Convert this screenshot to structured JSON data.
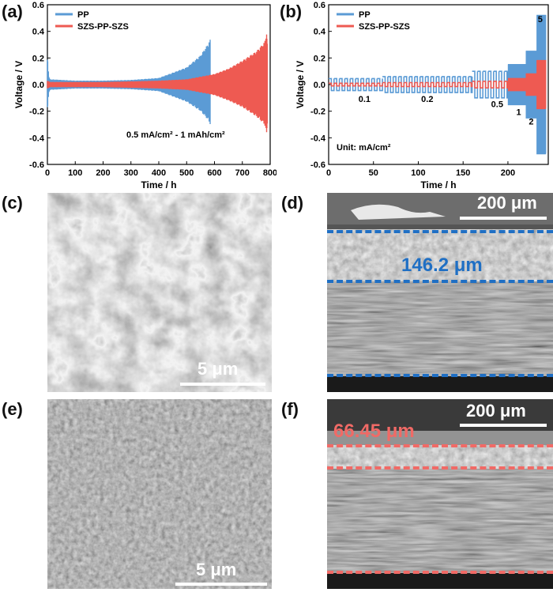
{
  "panels": {
    "a": "(a)",
    "b": "(b)",
    "c": "(c)",
    "d": "(d)",
    "e": "(e)",
    "f": "(f)"
  },
  "colors": {
    "pp": "#5b9bd5",
    "szs": "#ee5a52",
    "measure_d": "#1f6fc4",
    "measure_f": "#f06a66"
  },
  "chart_data": [
    {
      "type": "line",
      "panel": "a",
      "xlabel": "Time / h",
      "ylabel": "Voltage / V",
      "xlim": [
        0,
        800
      ],
      "ylim": [
        -0.6,
        0.6
      ],
      "xticks": [
        0,
        100,
        200,
        300,
        400,
        500,
        600,
        700,
        800
      ],
      "yticks": [
        -0.6,
        -0.4,
        -0.2,
        0.0,
        0.2,
        0.4,
        0.6
      ],
      "legend": [
        "PP",
        "SZS-PP-SZS"
      ],
      "legend_position": "top-left",
      "annotation": "0.5 mA/cm² - 1 mAh/cm²",
      "series": [
        {
          "name": "PP",
          "envelope": {
            "t": [
              0,
              5,
              10,
              100,
              200,
              300,
              400,
              450,
              500,
              550,
              575,
              585,
              590
            ],
            "upper": [
              0.22,
              0.06,
              0.04,
              0.03,
              0.03,
              0.035,
              0.05,
              0.09,
              0.13,
              0.22,
              0.3,
              0.34,
              0.0
            ],
            "lower": [
              -0.2,
              -0.06,
              -0.04,
              -0.03,
              -0.03,
              -0.035,
              -0.05,
              -0.09,
              -0.13,
              -0.2,
              -0.26,
              -0.3,
              0.0
            ]
          }
        },
        {
          "name": "SZS-PP-SZS",
          "envelope": {
            "t": [
              0,
              10,
              100,
              200,
              300,
              400,
              500,
              600,
              650,
              700,
              750,
              780,
              790,
              792
            ],
            "upper": [
              0.03,
              0.02,
              0.02,
              0.02,
              0.025,
              0.03,
              0.04,
              0.08,
              0.12,
              0.18,
              0.25,
              0.32,
              0.42,
              0.0
            ],
            "lower": [
              -0.03,
              -0.02,
              -0.02,
              -0.02,
              -0.025,
              -0.03,
              -0.04,
              -0.08,
              -0.12,
              -0.17,
              -0.24,
              -0.3,
              -0.4,
              0.0
            ]
          }
        }
      ]
    },
    {
      "type": "line",
      "panel": "b",
      "xlabel": "Time / h",
      "ylabel": "Voltage / V",
      "xlim": [
        0,
        245
      ],
      "ylim": [
        -0.6,
        0.6
      ],
      "xticks": [
        0,
        50,
        100,
        150,
        200
      ],
      "yticks": [
        -0.6,
        -0.4,
        -0.2,
        0.0,
        0.2,
        0.4,
        0.6
      ],
      "legend": [
        "PP",
        "SZS-PP-SZS"
      ],
      "legend_position": "top-left",
      "annotation": "Unit: mA/cm²",
      "rate_labels": [
        {
          "text": "0.1",
          "t": 40,
          "v": -0.13
        },
        {
          "text": "0.2",
          "t": 110,
          "v": -0.13
        },
        {
          "text": "0.5",
          "t": 188,
          "v": -0.17
        },
        {
          "text": "1",
          "t": 212,
          "v": -0.23
        },
        {
          "text": "2",
          "t": 226,
          "v": -0.3
        },
        {
          "text": "5",
          "t": 236,
          "v": 0.47
        }
      ],
      "series": [
        {
          "name": "PP",
          "segments": [
            {
              "t0": 0,
              "t1": 60,
              "amp": 0.045
            },
            {
              "t0": 60,
              "t1": 160,
              "amp": 0.06
            },
            {
              "t0": 160,
              "t1": 200,
              "amp": 0.1
            },
            {
              "t0": 200,
              "t1": 220,
              "amp": 0.15
            },
            {
              "t0": 220,
              "t1": 232,
              "amp": 0.25
            },
            {
              "t0": 232,
              "t1": 242,
              "amp": 0.52
            }
          ]
        },
        {
          "name": "SZS-PP-SZS",
          "segments": [
            {
              "t0": 0,
              "t1": 60,
              "amp": 0.01
            },
            {
              "t0": 60,
              "t1": 160,
              "amp": 0.015
            },
            {
              "t0": 160,
              "t1": 200,
              "amp": 0.025
            },
            {
              "t0": 200,
              "t1": 220,
              "amp": 0.045
            },
            {
              "t0": 220,
              "t1": 232,
              "amp": 0.08
            },
            {
              "t0": 232,
              "t1": 242,
              "amp": 0.18
            }
          ]
        }
      ]
    }
  ],
  "images": {
    "c": {
      "scalebar": "5 μm"
    },
    "d": {
      "scalebar": "200 μm",
      "thickness": "146.2 μm"
    },
    "e": {
      "scalebar": "5 μm"
    },
    "f": {
      "scalebar": "200 μm",
      "thickness": "66.45 μm"
    }
  }
}
